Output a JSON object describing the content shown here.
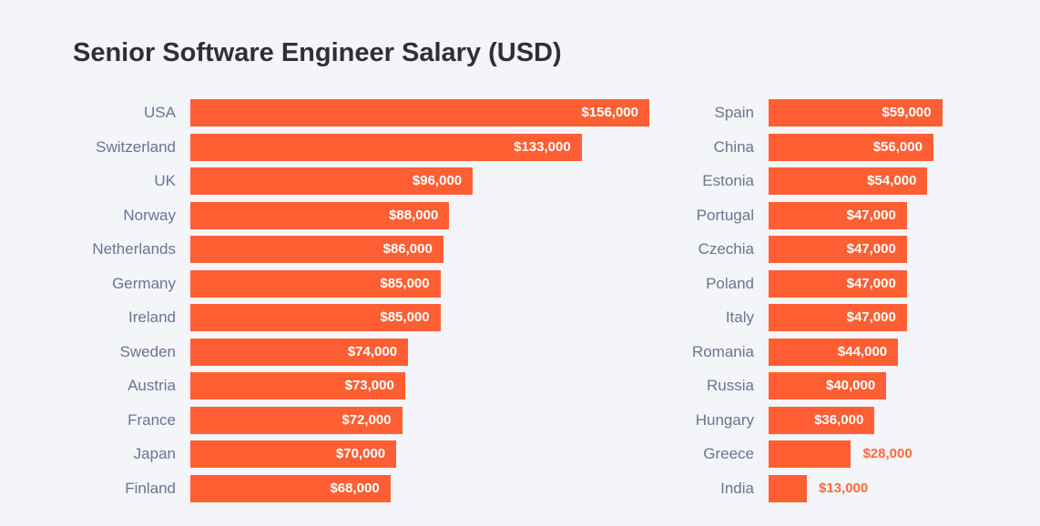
{
  "chart_data": {
    "type": "bar",
    "orientation": "horizontal",
    "title": "Senior Software Engineer Salary (USD)",
    "xlabel": "",
    "ylabel": "",
    "xlim": [
      0,
      156000
    ],
    "grid": false,
    "bar_color": "#ff5f33",
    "panels": [
      {
        "categories": [
          "USA",
          "Switzerland",
          "UK",
          "Norway",
          "Netherlands",
          "Germany",
          "Ireland",
          "Sweden",
          "Austria",
          "France",
          "Japan",
          "Finland"
        ],
        "values": [
          156000,
          133000,
          96000,
          88000,
          86000,
          85000,
          85000,
          74000,
          73000,
          72000,
          70000,
          68000
        ],
        "labels": [
          "$156,000",
          "$133,000",
          "$96,000",
          "$88,000",
          "$86,000",
          "$85,000",
          "$85,000",
          "$74,000",
          "$73,000",
          "$72,000",
          "$70,000",
          "$68,000"
        ]
      },
      {
        "categories": [
          "Spain",
          "China",
          "Estonia",
          "Portugal",
          "Czechia",
          "Poland",
          "Italy",
          "Romania",
          "Russia",
          "Hungary",
          "Greece",
          "India"
        ],
        "values": [
          59000,
          56000,
          54000,
          47000,
          47000,
          47000,
          47000,
          44000,
          40000,
          36000,
          28000,
          13000
        ],
        "labels": [
          "$59,000",
          "$56,000",
          "$54,000",
          "$47,000",
          "$47,000",
          "$47,000",
          "$47,000",
          "$44,000",
          "$40,000",
          "$36,000",
          "$28,000",
          "$13,000"
        ]
      }
    ]
  }
}
